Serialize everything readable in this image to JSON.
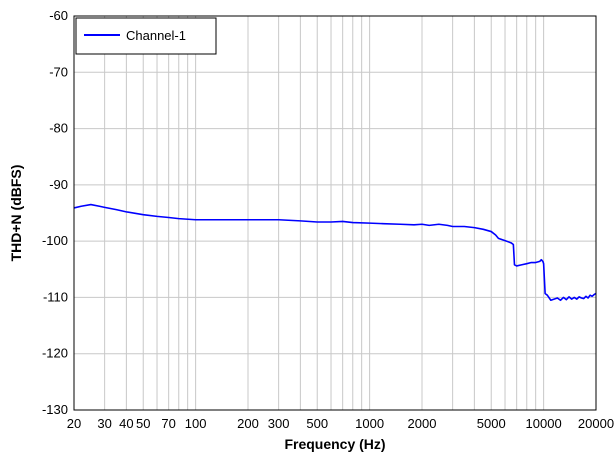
{
  "chart_data": {
    "type": "line",
    "title": "",
    "xlabel": "Frequency (Hz)",
    "ylabel": "THD+N (dBFS)",
    "x_scale": "log",
    "xlim": [
      20,
      20000
    ],
    "ylim": [
      -130,
      -60
    ],
    "grid": true,
    "legend_position": "top-left",
    "x_ticks": [
      20,
      30,
      40,
      50,
      70,
      100,
      200,
      300,
      500,
      1000,
      2000,
      5000,
      10000,
      20000
    ],
    "x_tick_labels": [
      "20",
      "30",
      "40",
      "50",
      "70",
      "100",
      "200",
      "300",
      "500",
      "1000",
      "2000",
      "5000",
      "10000",
      "20000"
    ],
    "y_ticks": [
      -130,
      -120,
      -110,
      -100,
      -90,
      -80,
      -70,
      -60
    ],
    "y_tick_labels": [
      "-130",
      "-120",
      "-110",
      "-100",
      "-90",
      "-80",
      "-70",
      "-60"
    ],
    "series": [
      {
        "name": "Channel-1",
        "color": "#0000ff",
        "x": [
          20,
          22,
          25,
          28,
          30,
          35,
          40,
          50,
          60,
          70,
          80,
          100,
          150,
          200,
          300,
          400,
          500,
          600,
          700,
          800,
          1000,
          1200,
          1500,
          1800,
          2000,
          2200,
          2500,
          2800,
          3000,
          3500,
          4000,
          4500,
          5000,
          5300,
          5500,
          6000,
          6500,
          6700,
          6800,
          7000,
          7500,
          8000,
          8500,
          9000,
          9500,
          9700,
          9900,
          10000,
          10200,
          10500,
          11000,
          12000,
          12500,
          13000,
          13500,
          14000,
          14500,
          15000,
          15500,
          16000,
          16500,
          17000,
          17500,
          18000,
          18500,
          19000,
          19500,
          20000
        ],
        "values": [
          -94.1,
          -93.8,
          -93.5,
          -93.8,
          -94.0,
          -94.4,
          -94.8,
          -95.3,
          -95.6,
          -95.8,
          -96.0,
          -96.2,
          -96.2,
          -96.2,
          -96.2,
          -96.4,
          -96.6,
          -96.6,
          -96.5,
          -96.7,
          -96.8,
          -96.9,
          -97.0,
          -97.1,
          -97.0,
          -97.2,
          -97.0,
          -97.2,
          -97.4,
          -97.4,
          -97.6,
          -97.9,
          -98.3,
          -98.9,
          -99.5,
          -99.9,
          -100.3,
          -100.6,
          -104.2,
          -104.4,
          -104.2,
          -104.0,
          -103.8,
          -103.8,
          -103.6,
          -103.3,
          -103.6,
          -104.0,
          -109.3,
          -109.6,
          -110.5,
          -110.1,
          -110.5,
          -110.0,
          -110.4,
          -109.9,
          -110.3,
          -110.0,
          -110.3,
          -109.9,
          -110.1,
          -110.2,
          -109.8,
          -110.1,
          -109.6,
          -109.8,
          -109.5,
          -109.3
        ]
      }
    ]
  }
}
